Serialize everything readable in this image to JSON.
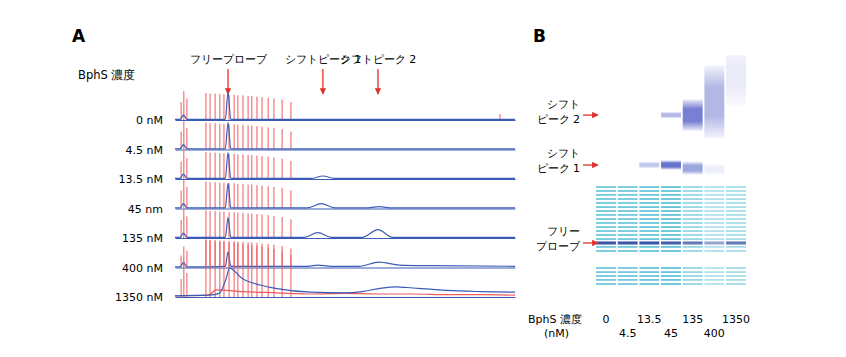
{
  "chart_data": [
    {
      "type": "line",
      "title": "A",
      "y_label": "BphS 濃度",
      "tick_labels": false,
      "xlim": [
        0,
        100
      ],
      "ylim": [
        0,
        100
      ],
      "annotations": [
        {
          "text": "フリープローブ",
          "x": 15.6
        },
        {
          "text": "シフトピーク 1",
          "x": 43.5
        },
        {
          "text": "シフトピーク 2",
          "x": 59.7
        }
      ],
      "traces": [
        {
          "label": "0 nM",
          "series": [
            {
              "type": "stem",
              "color": "#ee5a5e",
              "x": [
                1.8,
                2.6,
                3.5,
                9.1,
                10.3,
                11.8,
                13.2,
                14.4,
                15.9,
                17.4,
                18.5,
                20.0,
                21.5,
                22.6,
                24.1,
                25.6,
                27.4,
                29.1,
                31.5,
                34.1,
                95.6
              ],
              "values": [
                30,
                48,
                36,
                45,
                44,
                44,
                43,
                43,
                42,
                42,
                41,
                41,
                40,
                40,
                39,
                38,
                37,
                36,
                34,
                30,
                10
              ]
            },
            {
              "type": "line",
              "color": "#3a5cb5",
              "x": [
                0,
                1.5,
                2.5,
                3.5,
                14.8,
                15.6,
                16.4,
                100
              ],
              "values": [
                1,
                1,
                8,
                1,
                1,
                46,
                1,
                1
              ]
            }
          ]
        },
        {
          "label": "4.5 nM",
          "series": [
            {
              "type": "stem",
              "color": "#ee5a5e",
              "x": [
                1.8,
                2.6,
                3.5,
                9.1,
                10.3,
                11.8,
                13.2,
                14.4,
                15.9,
                17.4,
                18.5,
                20.0,
                21.5,
                22.6,
                24.1,
                25.6,
                27.4,
                29.1,
                31.5,
                34.1
              ],
              "values": [
                30,
                47,
                36,
                45,
                44,
                44,
                43,
                43,
                42,
                42,
                41,
                41,
                40,
                40,
                39,
                38,
                37,
                36,
                34,
                30
              ]
            },
            {
              "type": "line",
              "color": "#3a5cb5",
              "x": [
                0,
                1.5,
                2.5,
                3.5,
                14.8,
                15.6,
                16.4,
                100
              ],
              "values": [
                1,
                1,
                8,
                1,
                1,
                45,
                1,
                1
              ]
            }
          ]
        },
        {
          "label": "13.5 nM",
          "series": [
            {
              "type": "stem",
              "color": "#ee5a5e",
              "x": [
                1.8,
                2.6,
                3.5,
                9.1,
                10.3,
                11.8,
                13.2,
                14.4,
                15.9,
                17.4,
                18.5,
                20.0,
                21.5,
                22.6,
                24.1,
                25.6,
                27.4,
                29.1,
                31.5,
                34.1
              ],
              "values": [
                29,
                47,
                35,
                45,
                44,
                44,
                43,
                43,
                42,
                42,
                41,
                41,
                40,
                40,
                39,
                38,
                37,
                36,
                34,
                30
              ]
            },
            {
              "type": "line",
              "color": "#3a5cb5",
              "x": [
                0,
                1.5,
                2.5,
                3.5,
                14.8,
                15.6,
                16.4,
                40,
                43.5,
                47,
                100
              ],
              "values": [
                1,
                1,
                8,
                1,
                1,
                44,
                1,
                1,
                5,
                1,
                1
              ]
            }
          ]
        },
        {
          "label": "45 nm",
          "series": [
            {
              "type": "stem",
              "color": "#ee5a5e",
              "x": [
                1.8,
                2.6,
                3.5,
                9.1,
                10.3,
                11.8,
                13.2,
                14.4,
                15.9,
                17.4,
                18.5,
                20.0,
                21.5,
                22.6,
                24.1,
                25.6,
                27.4,
                29.1,
                31.5,
                34.1
              ],
              "values": [
                30,
                48,
                36,
                45,
                44,
                44,
                43,
                43,
                42,
                42,
                41,
                41,
                40,
                40,
                39,
                38,
                37,
                36,
                34,
                30
              ]
            },
            {
              "type": "line",
              "color": "#3a5cb5",
              "x": [
                0,
                1.5,
                2.5,
                3.5,
                14.8,
                15.6,
                16.4,
                39,
                43,
                47,
                56,
                60,
                64,
                100
              ],
              "values": [
                1,
                1,
                8,
                1,
                1,
                42,
                1,
                1,
                8,
                1,
                1,
                3,
                1,
                1
              ]
            }
          ]
        },
        {
          "label": "135 nM",
          "series": [
            {
              "type": "stem",
              "color": "#ee5a5e",
              "x": [
                1.8,
                2.6,
                3.5,
                9.1,
                10.3,
                11.8,
                13.2,
                14.4,
                15.9,
                17.4,
                18.5,
                20.0,
                21.5,
                22.6,
                24.1,
                25.6,
                27.4,
                29.1,
                31.5,
                34.1
              ],
              "values": [
                30,
                48,
                36,
                46,
                45,
                45,
                44,
                44,
                43,
                43,
                42,
                42,
                41,
                41,
                40,
                39,
                38,
                37,
                35,
                31
              ]
            },
            {
              "type": "line",
              "color": "#3a5cb5",
              "x": [
                0,
                1.5,
                2.5,
                3.5,
                14.8,
                15.6,
                16.4,
                38,
                42,
                46,
                55,
                59.7,
                64,
                100
              ],
              "values": [
                1,
                1,
                8,
                1,
                1,
                34,
                1,
                1,
                9,
                1,
                1,
                14,
                1,
                1
              ]
            }
          ]
        },
        {
          "label": "400 nM",
          "series": [
            {
              "type": "stem",
              "color": "#ee5a5e",
              "x": [
                1.8,
                2.6,
                3.5,
                9.1,
                10.3,
                11.8,
                13.2,
                14.4,
                15.9,
                17.4,
                18.5,
                20.0,
                21.5,
                22.6,
                24.1,
                25.6,
                27.4,
                29.1,
                31.5,
                34.1
              ],
              "values": [
                20,
                35,
                28,
                47,
                46,
                46,
                45,
                45,
                44,
                44,
                43,
                43,
                42,
                42,
                41,
                40,
                39,
                38,
                36,
                32
              ]
            },
            {
              "type": "line",
              "color": "#3a5cb5",
              "x": [
                0,
                1.5,
                2.5,
                3.5,
                14.8,
                15.6,
                16.4,
                39,
                42,
                46,
                54,
                60,
                66,
                75,
                100
              ],
              "values": [
                1,
                1,
                8,
                1,
                2,
                26,
                2,
                2,
                4,
                2,
                2,
                9,
                4,
                3,
                2
              ]
            }
          ]
        },
        {
          "label": "1350 nM",
          "series": [
            {
              "type": "stem",
              "color": "#ee5a5e",
              "x": [
                1.8,
                2.6,
                3.5,
                9.1,
                10.3,
                11.8,
                13.2,
                14.4,
                15.9,
                17.4,
                18.5,
                20.0,
                21.5,
                22.6,
                24.1,
                25.6,
                27.4,
                29.1,
                31.5,
                34.1
              ],
              "values": [
                30,
                60,
                40,
                95,
                94,
                93,
                92,
                92,
                91,
                90,
                89,
                88,
                87,
                86,
                85,
                84,
                82,
                80,
                76,
                70
              ]
            },
            {
              "type": "line",
              "color": "#ee5a5e",
              "x": [
                0,
                10,
                12,
                20,
                30,
                40,
                50,
                60,
                70,
                80,
                90,
                100
              ],
              "values": [
                2,
                3,
                12,
                9,
                7,
                5,
                6,
                5,
                5,
                4,
                4,
                3
              ]
            },
            {
              "type": "line",
              "color": "#3a5cb5",
              "x": [
                0,
                10,
                13,
                15,
                16,
                20,
                25,
                30,
                40,
                50,
                55,
                60,
                65,
                70,
                75,
                80,
                90,
                100
              ],
              "values": [
                2,
                3,
                6,
                30,
                48,
                30,
                20,
                14,
                8,
                7,
                9,
                14,
                17,
                15,
                13,
                11,
                9,
                8
              ]
            }
          ]
        }
      ]
    },
    {
      "type": "gel",
      "title": "B",
      "x_label": [
        "BphS 濃度",
        "(nM)"
      ],
      "categories": [
        "0",
        "4.5",
        "13.5",
        "45",
        "135",
        "400",
        "1350"
      ],
      "ylim": [
        0,
        100
      ],
      "ladder": {
        "color": "#4fbcd4",
        "positions": [
          50.8,
          52.3,
          53.8,
          55.4,
          56.9,
          58.5,
          60.0,
          61.5,
          63.1,
          64.6,
          66.2,
          67.7,
          69.2,
          70.8,
          73.8,
          75.4,
          81.9,
          83.5,
          85.0,
          86.5,
          88.1
        ],
        "intensity": [
          0.8,
          0.8,
          0.85,
          0.9,
          0.6,
          0.45,
          0.5
        ]
      },
      "bands": [
        {
          "label": [
            "シフト",
            "ピーク 2"
          ],
          "color": "#5660c8",
          "position": [
            null,
            null,
            null,
            23.1,
            23.1,
            18,
            8
          ],
          "intensity": [
            null,
            null,
            null,
            0.45,
            0.8,
            0.45,
            0.12
          ],
          "spread": [
            null,
            null,
            null,
            1.2,
            6,
            14,
            12
          ]
        },
        {
          "label": [
            "シフト",
            "ピーク 1"
          ],
          "color": "#4d5cc4",
          "position": [
            null,
            null,
            42.3,
            42.3,
            43.5,
            44,
            null
          ],
          "intensity": [
            null,
            null,
            0.35,
            0.85,
            0.55,
            0.1,
            null
          ],
          "spread": [
            null,
            null,
            1.2,
            1.8,
            2.5,
            2,
            null
          ]
        },
        {
          "label": [
            "フリー",
            "プローブ"
          ],
          "color": "#2f4ea0",
          "position": [
            72.3,
            72.3,
            72.3,
            72.3,
            72.3,
            72.3,
            72.3
          ],
          "intensity": [
            0.95,
            0.95,
            0.95,
            0.9,
            0.75,
            0.5,
            0.75
          ],
          "spread": [
            0.8,
            0.8,
            0.8,
            0.8,
            0.8,
            0.8,
            0.8
          ]
        }
      ]
    }
  ]
}
